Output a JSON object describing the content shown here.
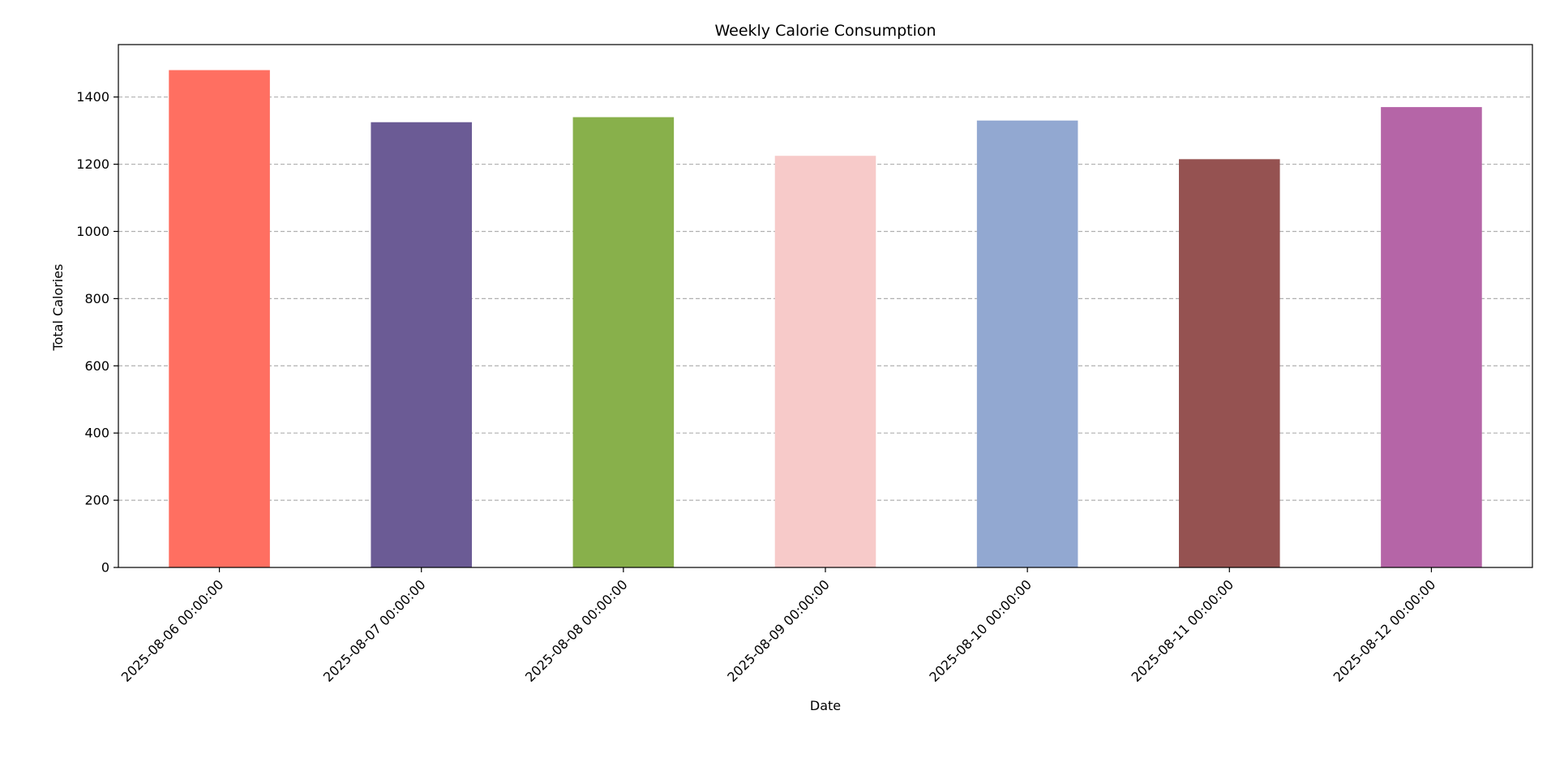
{
  "chart_data": {
    "type": "bar",
    "title": "Weekly Calorie Consumption",
    "xlabel": "Date",
    "ylabel": "Total Calories",
    "categories": [
      "2025-08-06 00:00:00",
      "2025-08-07 00:00:00",
      "2025-08-08 00:00:00",
      "2025-08-09 00:00:00",
      "2025-08-10 00:00:00",
      "2025-08-11 00:00:00",
      "2025-08-12 00:00:00"
    ],
    "values": [
      1480,
      1325,
      1340,
      1225,
      1330,
      1215,
      1370
    ],
    "colors": [
      "#ff6f61",
      "#6b5b95",
      "#88b04b",
      "#f7cac9",
      "#92a8d1",
      "#955251",
      "#b565a7"
    ],
    "ylim": [
      0,
      1556
    ],
    "yticks": [
      0,
      200,
      400,
      600,
      800,
      1000,
      1200,
      1400
    ],
    "grid": "y-dashed",
    "legend": "none"
  }
}
